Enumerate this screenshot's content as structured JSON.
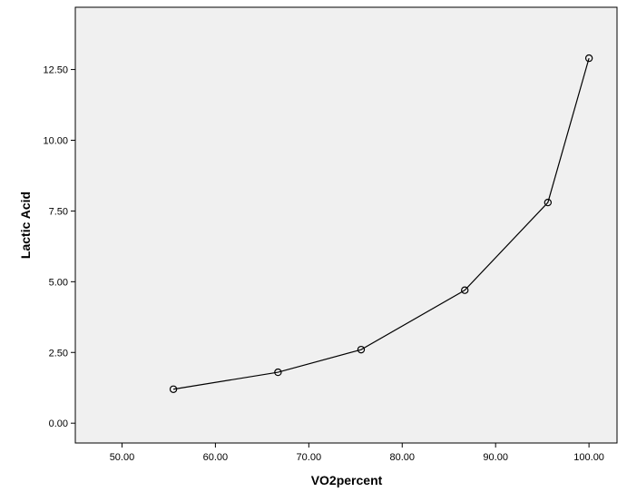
{
  "chart_data": {
    "type": "line",
    "title": "",
    "xlabel": "VO2percent",
    "ylabel": "Lactic Acid",
    "xlim": [
      45,
      103
    ],
    "ylim": [
      -0.7,
      14.7
    ],
    "x_ticks": [
      50,
      60,
      70,
      80,
      90,
      100
    ],
    "y_ticks": [
      0,
      2.5,
      5,
      7.5,
      10,
      12.5
    ],
    "x_tick_labels": [
      "50.00",
      "60.00",
      "70.00",
      "80.00",
      "90.00",
      "100.00"
    ],
    "y_tick_labels": [
      "0.00",
      "2.50",
      "5.00",
      "7.50",
      "10.00",
      "12.50"
    ],
    "grid": false,
    "marker": "open-circle",
    "colors": {
      "plot_background": "#f0f0f0",
      "frame": "#000000",
      "line": "#000000",
      "marker_stroke": "#000000"
    },
    "series": [
      {
        "points": [
          {
            "x": 55.5,
            "y": 1.2
          },
          {
            "x": 66.7,
            "y": 1.8
          },
          {
            "x": 75.6,
            "y": 2.6
          },
          {
            "x": 86.7,
            "y": 4.7
          },
          {
            "x": 95.6,
            "y": 7.8
          },
          {
            "x": 100.0,
            "y": 12.9
          }
        ]
      }
    ]
  }
}
